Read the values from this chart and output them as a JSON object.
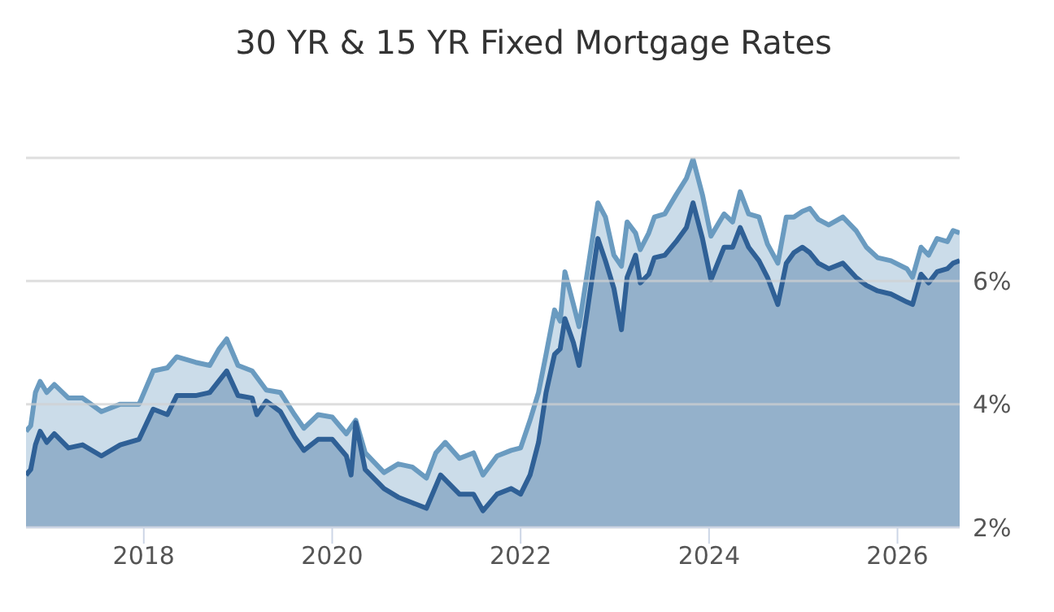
{
  "chart_data": {
    "type": "area",
    "title": "30 YR & 15 YR Fixed Mortgage Rates",
    "series": [
      {
        "color": "#6a9bc0",
        "x": [
          2016.75,
          2016.8,
          2016.85,
          2016.9,
          2016.97,
          2017.05,
          2017.2,
          2017.35,
          2017.55,
          2017.75,
          2017.95,
          2018.1,
          2018.25,
          2018.35,
          2018.55,
          2018.7,
          2018.8,
          2018.88,
          2019.0,
          2019.15,
          2019.3,
          2019.45,
          2019.6,
          2019.7,
          2019.85,
          2020.0,
          2020.15,
          2020.25,
          2020.35,
          2020.55,
          2020.7,
          2020.85,
          2021.0,
          2021.1,
          2021.2,
          2021.35,
          2021.5,
          2021.6,
          2021.75,
          2021.9,
          2022.0,
          2022.1,
          2022.19,
          2022.27,
          2022.36,
          2022.42,
          2022.47,
          2022.56,
          2022.62,
          2022.7,
          2022.82,
          2022.9,
          2022.99,
          2023.07,
          2023.13,
          2023.22,
          2023.27,
          2023.36,
          2023.42,
          2023.53,
          2023.65,
          2023.76,
          2023.83,
          2023.93,
          2024.02,
          2024.16,
          2024.25,
          2024.33,
          2024.42,
          2024.53,
          2024.62,
          2024.73,
          2024.82,
          2024.9,
          2024.99,
          2025.07,
          2025.16,
          2025.27,
          2025.42,
          2025.56,
          2025.67,
          2025.79,
          2025.93,
          2026.1,
          2026.16,
          2026.25,
          2026.33,
          2026.42,
          2026.53,
          2026.59,
          2026.66
        ],
        "values": [
          3.56,
          3.65,
          4.19,
          4.37,
          4.19,
          4.32,
          4.1,
          4.1,
          3.88,
          4.0,
          4.0,
          4.54,
          4.59,
          4.77,
          4.68,
          4.63,
          4.9,
          5.06,
          4.63,
          4.54,
          4.23,
          4.19,
          3.83,
          3.61,
          3.83,
          3.79,
          3.52,
          3.74,
          3.21,
          2.89,
          3.03,
          2.98,
          2.8,
          3.21,
          3.38,
          3.12,
          3.21,
          2.85,
          3.16,
          3.25,
          3.29,
          3.74,
          4.19,
          4.81,
          5.53,
          5.35,
          6.15,
          5.62,
          5.26,
          6.06,
          7.27,
          7.04,
          6.42,
          6.24,
          6.96,
          6.78,
          6.51,
          6.78,
          7.04,
          7.09,
          7.4,
          7.67,
          7.98,
          7.4,
          6.73,
          7.09,
          6.96,
          7.45,
          7.09,
          7.04,
          6.6,
          6.29,
          7.04,
          7.04,
          7.13,
          7.18,
          7.0,
          6.91,
          7.04,
          6.82,
          6.55,
          6.38,
          6.33,
          6.2,
          6.06,
          6.55,
          6.42,
          6.69,
          6.64,
          6.82,
          6.78
        ]
      },
      {
        "color": "#2f6096",
        "x": [
          2016.75,
          2016.8,
          2016.85,
          2016.9,
          2016.97,
          2017.05,
          2017.2,
          2017.35,
          2017.55,
          2017.75,
          2017.95,
          2018.1,
          2018.25,
          2018.35,
          2018.55,
          2018.7,
          2018.88,
          2019.0,
          2019.15,
          2019.2,
          2019.3,
          2019.45,
          2019.6,
          2019.7,
          2019.85,
          2020.0,
          2020.15,
          2020.2,
          2020.25,
          2020.35,
          2020.55,
          2020.7,
          2020.85,
          2021.0,
          2021.15,
          2021.35,
          2021.5,
          2021.6,
          2021.75,
          2021.9,
          2022.0,
          2022.1,
          2022.19,
          2022.27,
          2022.36,
          2022.42,
          2022.47,
          2022.56,
          2022.62,
          2022.7,
          2022.82,
          2022.9,
          2022.99,
          2023.07,
          2023.13,
          2023.22,
          2023.27,
          2023.36,
          2023.42,
          2023.53,
          2023.65,
          2023.76,
          2023.83,
          2023.93,
          2024.02,
          2024.16,
          2024.25,
          2024.33,
          2024.42,
          2024.53,
          2024.62,
          2024.73,
          2024.82,
          2024.9,
          2024.99,
          2025.07,
          2025.16,
          2025.27,
          2025.42,
          2025.56,
          2025.67,
          2025.79,
          2025.93,
          2026.1,
          2026.16,
          2026.25,
          2026.33,
          2026.42,
          2026.53,
          2026.59,
          2026.66
        ],
        "values": [
          2.85,
          2.94,
          3.34,
          3.56,
          3.38,
          3.52,
          3.29,
          3.34,
          3.16,
          3.34,
          3.43,
          3.92,
          3.83,
          4.14,
          4.14,
          4.19,
          4.54,
          4.14,
          4.1,
          3.83,
          4.05,
          3.88,
          3.47,
          3.25,
          3.43,
          3.43,
          3.16,
          2.85,
          3.7,
          2.94,
          2.63,
          2.49,
          2.4,
          2.31,
          2.85,
          2.54,
          2.54,
          2.27,
          2.54,
          2.63,
          2.54,
          2.85,
          3.38,
          4.19,
          4.81,
          4.9,
          5.39,
          5.0,
          4.63,
          5.44,
          6.69,
          6.33,
          5.88,
          5.21,
          6.06,
          6.42,
          5.97,
          6.11,
          6.38,
          6.42,
          6.64,
          6.87,
          7.27,
          6.69,
          6.02,
          6.55,
          6.55,
          6.87,
          6.55,
          6.33,
          6.06,
          5.62,
          6.29,
          6.46,
          6.55,
          6.46,
          6.29,
          6.2,
          6.29,
          6.06,
          5.93,
          5.84,
          5.79,
          5.66,
          5.62,
          6.11,
          5.97,
          6.15,
          6.2,
          6.29,
          6.33
        ]
      }
    ],
    "xlim": [
      2016.75,
      2026.66
    ],
    "xticks": [
      2018,
      2020,
      2022,
      2024,
      2026
    ],
    "ylim": [
      2,
      8
    ],
    "yticks": [
      {
        "value": 2,
        "label": "2%"
      },
      {
        "value": 4,
        "label": "4%"
      },
      {
        "value": 6,
        "label": "6%"
      },
      {
        "value": 8,
        "label": null
      }
    ],
    "grid": "y",
    "legend": false
  }
}
